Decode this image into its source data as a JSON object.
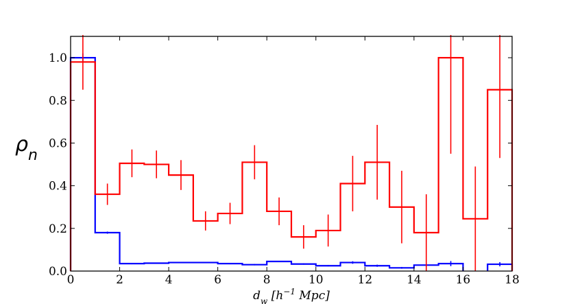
{
  "chart_data": {
    "type": "histogram-step",
    "xlabel": "d_w [h^-1 Mpc]",
    "ylabel": "ρ_n",
    "xlim": [
      0,
      18
    ],
    "ylim": [
      0,
      1.1
    ],
    "xticks": [
      "0",
      "2",
      "4",
      "6",
      "8",
      "10",
      "12",
      "14",
      "16",
      "18"
    ],
    "yticks": [
      "0.0",
      "0.2",
      "0.4",
      "0.6",
      "0.8",
      "1.0"
    ],
    "bin_edges": [
      0,
      1,
      2,
      3,
      4,
      5,
      6,
      7,
      8,
      9,
      10,
      11,
      12,
      13,
      14,
      15,
      16,
      17,
      18
    ],
    "series": [
      {
        "color": "#0000ff",
        "values": [
          1.0,
          0.18,
          0.035,
          0.037,
          0.04,
          0.04,
          0.035,
          0.03,
          0.045,
          0.033,
          0.025,
          0.04,
          0.025,
          0.015,
          0.028,
          0.035,
          null,
          0.032
        ],
        "errors": [
          0.02,
          0.005,
          0.003,
          0.003,
          0.003,
          0.003,
          0.003,
          0.003,
          0.003,
          0.003,
          0.003,
          0.006,
          0.005,
          0.004,
          0.006,
          0.012,
          null,
          0.01
        ]
      },
      {
        "color": "#ff0000",
        "values": [
          0.98,
          0.36,
          0.505,
          0.5,
          0.45,
          0.235,
          0.27,
          0.51,
          0.28,
          0.16,
          0.19,
          0.41,
          0.51,
          0.3,
          0.18,
          1.0,
          0.245,
          0.85
        ],
        "errors": [
          0.13,
          0.05,
          0.065,
          0.065,
          0.07,
          0.045,
          0.05,
          0.08,
          0.065,
          0.055,
          0.075,
          0.13,
          0.175,
          0.17,
          0.18,
          0.45,
          0.245,
          0.32
        ]
      }
    ]
  }
}
